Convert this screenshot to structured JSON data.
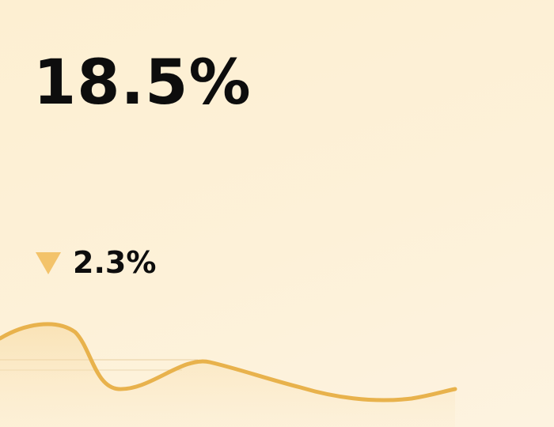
{
  "kpi": {
    "value": "18.5%",
    "change": "2.3%",
    "change_direction": "down",
    "arrow_icon": "triangle-down-icon",
    "accent_color": "#f3c36a",
    "line_color": "#e8b24c"
  }
}
